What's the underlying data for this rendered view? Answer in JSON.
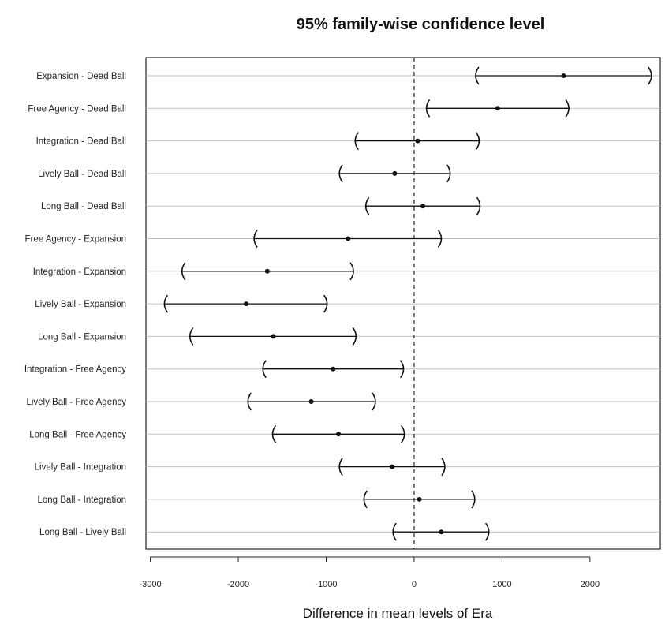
{
  "chart_data": {
    "type": "interval",
    "title": "95% family-wise confidence level",
    "xlabel": "Difference in mean levels of Era",
    "ylabel": "",
    "xlim": [
      -3050,
      2800
    ],
    "x_ticks": [
      -3000,
      -2000,
      -1000,
      0,
      1000,
      2000
    ],
    "reference_line": 0,
    "grid": true,
    "comparisons": [
      {
        "label": "Expansion - Dead Ball",
        "lower": 700,
        "estimate": 1700,
        "upper": 2700
      },
      {
        "label": "Free Agency - Dead Ball",
        "lower": 140,
        "estimate": 950,
        "upper": 1760
      },
      {
        "label": "Integration - Dead Ball",
        "lower": -670,
        "estimate": 40,
        "upper": 740
      },
      {
        "label": "Lively Ball - Dead Ball",
        "lower": -850,
        "estimate": -220,
        "upper": 410
      },
      {
        "label": "Long Ball - Dead Ball",
        "lower": -550,
        "estimate": 100,
        "upper": 750
      },
      {
        "label": "Free Agency - Expansion",
        "lower": -1820,
        "estimate": -750,
        "upper": 310
      },
      {
        "label": "Integration - Expansion",
        "lower": -2640,
        "estimate": -1670,
        "upper": -690
      },
      {
        "label": "Lively Ball - Expansion",
        "lower": -2840,
        "estimate": -1910,
        "upper": -990
      },
      {
        "label": "Long Ball - Expansion",
        "lower": -2550,
        "estimate": -1600,
        "upper": -660
      },
      {
        "label": "Integration - Free Agency",
        "lower": -1720,
        "estimate": -920,
        "upper": -120
      },
      {
        "label": "Lively Ball - Free Agency",
        "lower": -1890,
        "estimate": -1170,
        "upper": -440
      },
      {
        "label": "Long Ball - Free Agency",
        "lower": -1610,
        "estimate": -860,
        "upper": -110
      },
      {
        "label": "Lively Ball - Integration",
        "lower": -850,
        "estimate": -250,
        "upper": 350
      },
      {
        "label": "Long Ball - Integration",
        "lower": -570,
        "estimate": 60,
        "upper": 690
      },
      {
        "label": "Long Ball - Lively Ball",
        "lower": -240,
        "estimate": 310,
        "upper": 850
      }
    ]
  }
}
